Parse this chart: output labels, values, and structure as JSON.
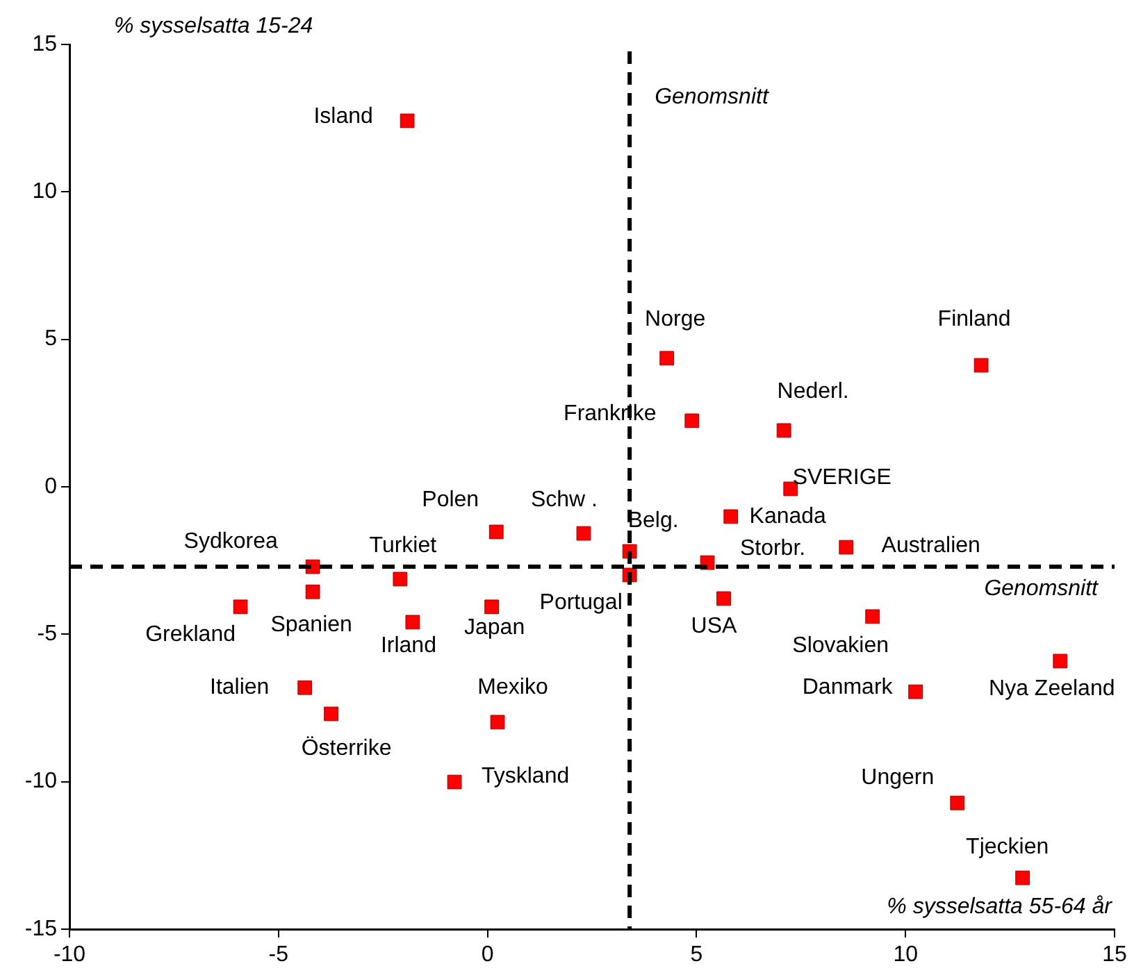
{
  "chart_data": {
    "type": "scatter",
    "xlabel": "% sysselsatta 55-64 år",
    "ylabel": "% sysselsatta 15-24",
    "xlim": [
      -10,
      15
    ],
    "xticks": [
      -10,
      -5,
      0,
      5,
      10,
      15
    ],
    "ylim": [
      -15,
      15
    ],
    "yticks": [
      -15,
      -10,
      -5,
      0,
      5,
      10,
      15
    ],
    "grid": false,
    "legend": false,
    "marker": "square",
    "series": [
      {
        "color": "#ff0000",
        "x": [
          -1.92,
          4.29,
          11.81,
          4.89,
          7.09,
          7.25,
          0.21,
          2.3,
          5.82,
          3.4,
          8.58,
          5.26,
          -4.18,
          -2.09,
          3.4,
          -4.18,
          5.65,
          -5.91,
          0.1,
          -1.79,
          9.21,
          13.7,
          -4.37,
          10.24,
          -3.74,
          0.24,
          -0.79,
          11.24,
          12.8
        ],
        "values": [
          12.41,
          4.36,
          4.12,
          2.24,
          1.91,
          -0.07,
          -1.53,
          -1.58,
          -1.01,
          -2.19,
          -2.05,
          -2.57,
          -2.71,
          -3.13,
          -2.99,
          -3.56,
          -3.79,
          -4.07,
          -4.07,
          -4.59,
          -4.4,
          -5.91,
          -6.81,
          -6.95,
          -7.7,
          -7.98,
          -10.01,
          -10.72,
          -13.26
        ]
      }
    ],
    "ref_lines": [
      {
        "axis": "x",
        "value": 3.4,
        "label": "Genomsnitt",
        "line_style": "dashed",
        "color": "#000000"
      },
      {
        "axis": "y",
        "value": -2.71,
        "label": "Genomsnitt",
        "line_style": "dashed",
        "color": "#000000"
      }
    ],
    "annotations": [
      {
        "text": "Island",
        "x": -1.92,
        "y": 12.41
      },
      {
        "text": "Norge",
        "x": 4.29,
        "y": 4.36
      },
      {
        "text": "Finland",
        "x": 11.81,
        "y": 4.12
      },
      {
        "text": "Frankrike",
        "x": 4.89,
        "y": 2.24
      },
      {
        "text": "Nederl.",
        "x": 7.09,
        "y": 1.91
      },
      {
        "text": "SVERIGE",
        "x": 7.25,
        "y": -0.07
      },
      {
        "text": "Polen",
        "x": 0.21,
        "y": -1.53
      },
      {
        "text": "Schw .",
        "x": 2.3,
        "y": -1.58
      },
      {
        "text": "Kanada",
        "x": 5.82,
        "y": -1.01
      },
      {
        "text": "Belg.",
        "x": 3.4,
        "y": -2.19
      },
      {
        "text": "Australien",
        "x": 8.58,
        "y": -2.05
      },
      {
        "text": "Storbr.",
        "x": 5.26,
        "y": -2.57
      },
      {
        "text": "Sydkorea",
        "x": -4.18,
        "y": -2.71
      },
      {
        "text": "Turkiet",
        "x": -2.09,
        "y": -3.13
      },
      {
        "text": "Portugal",
        "x": 3.4,
        "y": -2.99
      },
      {
        "text": "Spanien",
        "x": -4.18,
        "y": -3.56
      },
      {
        "text": "USA",
        "x": 5.65,
        "y": -3.79
      },
      {
        "text": "Grekland",
        "x": -5.91,
        "y": -4.07
      },
      {
        "text": "Japan",
        "x": 0.1,
        "y": -4.07
      },
      {
        "text": "Irland",
        "x": -1.79,
        "y": -4.59
      },
      {
        "text": "Slovakien",
        "x": 9.21,
        "y": -4.4
      },
      {
        "text": "Nya Zeeland",
        "x": 13.7,
        "y": -5.91
      },
      {
        "text": "Italien",
        "x": -4.37,
        "y": -6.81
      },
      {
        "text": "Danmark",
        "x": 10.24,
        "y": -6.95
      },
      {
        "text": "Österrike",
        "x": -3.74,
        "y": -7.7
      },
      {
        "text": "Mexiko",
        "x": 0.24,
        "y": -7.98
      },
      {
        "text": "Tyskland",
        "x": -0.79,
        "y": -10.01
      },
      {
        "text": "Ungern",
        "x": 11.24,
        "y": -10.72
      },
      {
        "text": "Tjeckien",
        "x": 12.8,
        "y": -13.26
      }
    ]
  }
}
